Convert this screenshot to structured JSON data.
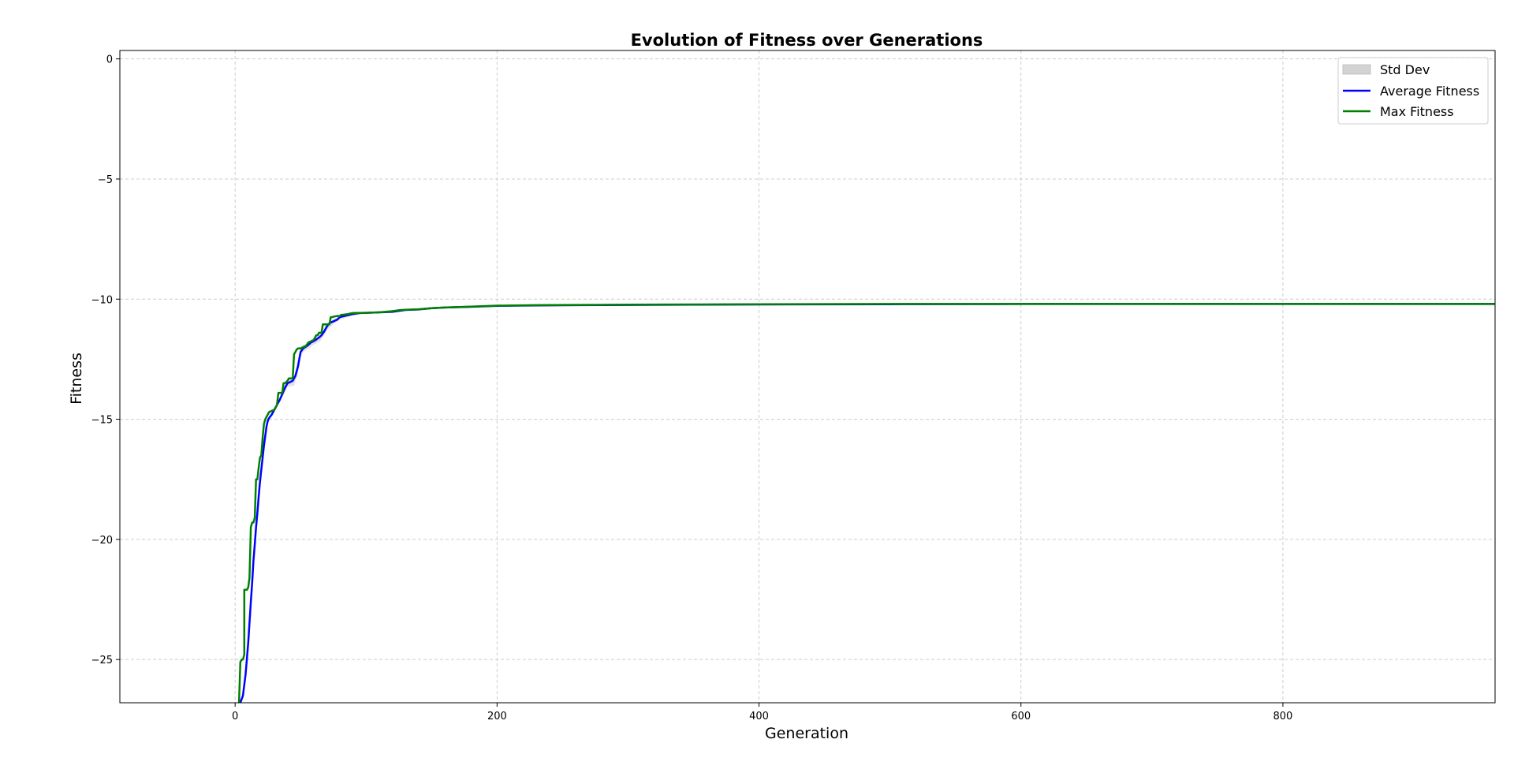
{
  "chart_data": {
    "type": "line",
    "title": "Evolution of Fitness over Generations",
    "xlabel": "Generation",
    "ylabel": "Fitness",
    "xlim": [
      -88,
      962
    ],
    "ylim": [
      -26.8,
      0.35
    ],
    "xticks": [
      0,
      200,
      400,
      600,
      800
    ],
    "yticks": [
      0,
      -5,
      -10,
      -15,
      -20,
      -25
    ],
    "xtick_labels": [
      "0",
      "200",
      "400",
      "600",
      "800"
    ],
    "ytick_labels": [
      "0",
      "−5",
      "−10",
      "−15",
      "−20",
      "−25"
    ],
    "grid": true,
    "legend_position": "top-right",
    "legend": [
      "Std Dev",
      "Average Fitness",
      "Max Fitness"
    ],
    "colors": {
      "std_band": "#c8c8d8",
      "std_legend": "#d3d3d3",
      "average": "#0000ff",
      "max": "#008000",
      "grid": "#cccccc"
    },
    "series": [
      {
        "name": "Average Fitness",
        "color": "#0000ff",
        "x": [
          4,
          6,
          8,
          10,
          12,
          13,
          14,
          15,
          16,
          17,
          18,
          19,
          20,
          22,
          24,
          25,
          26,
          28,
          30,
          32,
          34,
          36,
          38,
          40,
          42,
          44,
          46,
          48,
          50,
          52,
          54,
          56,
          58,
          60,
          62,
          64,
          66,
          68,
          70,
          72,
          74,
          76,
          78,
          80,
          85,
          90,
          95,
          100,
          110,
          120,
          130,
          140,
          150,
          160,
          180,
          200,
          230,
          260,
          300,
          350,
          400,
          500,
          600,
          700,
          800,
          962
        ],
        "y": [
          -26.8,
          -26.5,
          -25.6,
          -24.3,
          -22.6,
          -21.8,
          -20.9,
          -20.2,
          -19.5,
          -18.9,
          -18.2,
          -17.6,
          -17.1,
          -16.1,
          -15.3,
          -15.05,
          -14.95,
          -14.8,
          -14.6,
          -14.4,
          -14.2,
          -13.95,
          -13.7,
          -13.5,
          -13.45,
          -13.4,
          -13.2,
          -12.8,
          -12.2,
          -12.05,
          -11.98,
          -11.9,
          -11.8,
          -11.75,
          -11.68,
          -11.6,
          -11.5,
          -11.35,
          -11.15,
          -11.0,
          -10.95,
          -10.9,
          -10.85,
          -10.75,
          -10.68,
          -10.62,
          -10.58,
          -10.57,
          -10.55,
          -10.53,
          -10.45,
          -10.43,
          -10.38,
          -10.35,
          -10.32,
          -10.28,
          -10.26,
          -10.25,
          -10.24,
          -10.23,
          -10.22,
          -10.21,
          -10.2,
          -10.2,
          -10.2,
          -10.2
        ]
      },
      {
        "name": "Max Fitness",
        "color": "#008000",
        "x": [
          3,
          4,
          5,
          6,
          7,
          7,
          8,
          9,
          10,
          11,
          12,
          13,
          14,
          15,
          16,
          17,
          18,
          19,
          20,
          21,
          22,
          23,
          24,
          26,
          28,
          30,
          32,
          33,
          34,
          36,
          37,
          38,
          40,
          41,
          42,
          44,
          45,
          46,
          47,
          48,
          50,
          52,
          54,
          56,
          58,
          60,
          62,
          63,
          64,
          66,
          67,
          68,
          70,
          72,
          73,
          74,
          76,
          78,
          80,
          81,
          82,
          86,
          88,
          90,
          100,
          110,
          120,
          125,
          130,
          140,
          150,
          160,
          180,
          200,
          230,
          260,
          300,
          350,
          400,
          500,
          600,
          700,
          800,
          962
        ],
        "y": [
          -26.8,
          -25.1,
          -25.0,
          -25.0,
          -24.8,
          -22.1,
          -22.1,
          -22.1,
          -22.0,
          -21.6,
          -19.5,
          -19.3,
          -19.3,
          -19.1,
          -17.5,
          -17.5,
          -17.0,
          -16.6,
          -16.5,
          -15.8,
          -15.2,
          -15.0,
          -14.9,
          -14.7,
          -14.65,
          -14.6,
          -14.4,
          -13.9,
          -13.9,
          -13.9,
          -13.5,
          -13.5,
          -13.4,
          -13.3,
          -13.3,
          -13.3,
          -12.3,
          -12.2,
          -12.1,
          -12.05,
          -12.05,
          -12.0,
          -11.95,
          -11.8,
          -11.75,
          -11.7,
          -11.5,
          -11.5,
          -11.4,
          -11.4,
          -11.05,
          -11.05,
          -11.05,
          -11.05,
          -10.75,
          -10.75,
          -10.72,
          -10.7,
          -10.7,
          -10.65,
          -10.65,
          -10.62,
          -10.6,
          -10.58,
          -10.57,
          -10.55,
          -10.5,
          -10.46,
          -10.44,
          -10.42,
          -10.38,
          -10.35,
          -10.31,
          -10.27,
          -10.25,
          -10.24,
          -10.23,
          -10.22,
          -10.21,
          -10.2,
          -10.2,
          -10.2,
          -10.2,
          -10.2
        ]
      }
    ],
    "std_band": {
      "name": "Std Dev",
      "x": [
        20,
        25,
        30,
        35,
        40,
        45,
        48,
        50,
        52,
        55,
        60,
        65,
        70,
        75,
        80,
        90,
        100,
        120
      ],
      "lower": [
        -17.3,
        -15.15,
        -14.7,
        -14.2,
        -13.65,
        -13.6,
        -13.1,
        -12.4,
        -12.2,
        -12.1,
        -11.9,
        -11.75,
        -11.3,
        -11.05,
        -10.85,
        -10.68,
        -10.6,
        -10.55
      ],
      "upper": [
        -16.9,
        -14.95,
        -14.5,
        -14.0,
        -13.35,
        -13.2,
        -12.5,
        -12.0,
        -11.9,
        -11.85,
        -11.65,
        -11.45,
        -11.0,
        -10.85,
        -10.7,
        -10.6,
        -10.55,
        -10.51
      ]
    }
  }
}
